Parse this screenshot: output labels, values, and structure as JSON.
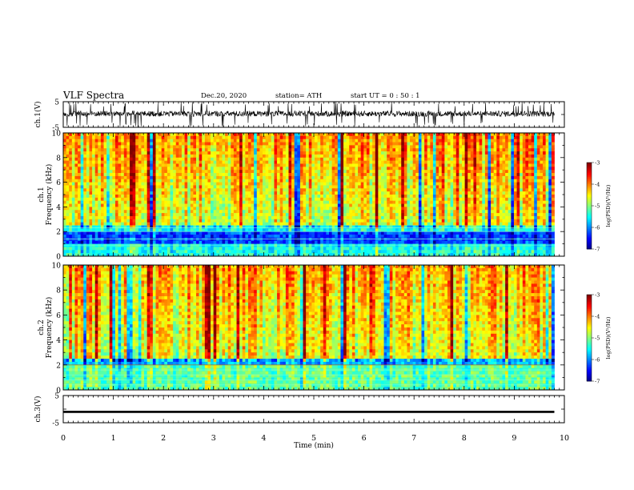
{
  "header": {
    "title": "VLF Spectra",
    "date": "Dec.20, 2020",
    "station": "station= ATH",
    "start_ut": "start  UT =   0 : 50 : 1"
  },
  "chart_data": [
    {
      "type": "line",
      "panel": "ch1-waveform",
      "ylabel": "ch.1(V)",
      "ylim": [
        -5,
        5
      ],
      "yticks": [
        "5",
        "-5"
      ],
      "xlim": [
        0,
        10
      ],
      "description_values": "dense noisy waveform, mostly between -2 and 2 V with spikes up to ±5 V"
    },
    {
      "type": "heatmap",
      "panel": "ch1-spectrogram",
      "ylabel": "ch.1\nFrequency  (kHz)",
      "ylabel_lines": [
        "ch.1",
        "Frequency  (kHz)"
      ],
      "ylim": [
        0,
        10
      ],
      "yticks": [
        "0",
        "2",
        "4",
        "6",
        "8",
        "10"
      ],
      "xlim": [
        0,
        9.8
      ],
      "colorbar": {
        "label": "log(PSD)(V²/Hz)",
        "range": [
          -7,
          -3
        ],
        "ticks": [
          "-3",
          "-4",
          "-5",
          "-6",
          "-7"
        ]
      }
    },
    {
      "type": "heatmap",
      "panel": "ch2-spectrogram",
      "ylabel_lines": [
        "ch.2",
        "Frequency  (kHz)"
      ],
      "ylim": [
        0,
        10
      ],
      "yticks": [
        "0",
        "2",
        "4",
        "6",
        "8",
        "10"
      ],
      "xlim": [
        0,
        9.8
      ],
      "colorbar": {
        "label": "log(PSD)(V²/Hz)",
        "range": [
          -7,
          -3
        ],
        "ticks": [
          "-3",
          "-4",
          "-5",
          "-6",
          "-7"
        ]
      }
    },
    {
      "type": "line",
      "panel": "ch3-waveform",
      "ylabel": "ch.3(V)",
      "ylim": [
        -5,
        5
      ],
      "yticks": [
        "5",
        "-5"
      ],
      "xlim": [
        0,
        10
      ],
      "values_note": "flat thick line at about -1 V"
    }
  ],
  "xaxis": {
    "label": "Time  (min)",
    "ticks": [
      "0",
      "1",
      "2",
      "3",
      "4",
      "5",
      "6",
      "7",
      "8",
      "9",
      "10"
    ]
  }
}
